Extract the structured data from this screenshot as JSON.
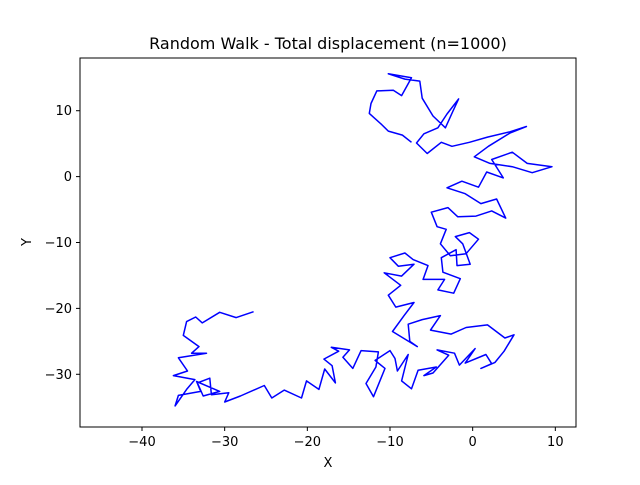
{
  "chart_data": {
    "type": "line",
    "title": "Random Walk - Total displacement (n=1000)",
    "xlabel": "X",
    "ylabel": "Y",
    "xlim": [
      -47.5,
      12.5
    ],
    "ylim": [
      -38,
      18
    ],
    "xticks": [
      -40,
      -30,
      -20,
      -10,
      0,
      10
    ],
    "xtick_labels": [
      "−40",
      "−30",
      "−20",
      "−10",
      "0",
      "10"
    ],
    "yticks": [
      -30,
      -20,
      -10,
      0,
      10
    ],
    "ytick_labels": [
      "−30",
      "−20",
      "−10",
      "0",
      "10"
    ],
    "grid": false,
    "legend": "none",
    "series": [
      {
        "color": "#0000ff",
        "points": [
          [
            -26.5,
            -20.5
          ],
          [
            -28.6,
            -21.4
          ],
          [
            -30.6,
            -20.6
          ],
          [
            -32.7,
            -22.2
          ],
          [
            -33.5,
            -21.3
          ],
          [
            -34.6,
            -22.0
          ],
          [
            -35.0,
            -24.1
          ],
          [
            -33.1,
            -25.8
          ],
          [
            -34.0,
            -26.8
          ],
          [
            -32.2,
            -26.8
          ],
          [
            -35.6,
            -27.5
          ],
          [
            -34.5,
            -29.5
          ],
          [
            -36.2,
            -30.2
          ],
          [
            -33.6,
            -30.8
          ],
          [
            -34.6,
            -32.3
          ],
          [
            -36.0,
            -34.8
          ],
          [
            -35.6,
            -33.2
          ],
          [
            -32.9,
            -32.6
          ],
          [
            -33.4,
            -31.1
          ],
          [
            -30.6,
            -32.6
          ],
          [
            -32.6,
            -33.3
          ],
          [
            -33.3,
            -31.3
          ],
          [
            -31.8,
            -30.6
          ],
          [
            -31.6,
            -33.1
          ],
          [
            -29.5,
            -32.8
          ],
          [
            -30.0,
            -34.2
          ],
          [
            -28.1,
            -33.3
          ],
          [
            -25.2,
            -31.7
          ],
          [
            -24.3,
            -33.6
          ],
          [
            -22.8,
            -32.4
          ],
          [
            -20.7,
            -33.6
          ],
          [
            -20.1,
            -31.0
          ],
          [
            -18.6,
            -32.3
          ],
          [
            -17.9,
            -29.2
          ],
          [
            -16.6,
            -31.3
          ],
          [
            -17.0,
            -28.7
          ],
          [
            -18.0,
            -27.7
          ],
          [
            -16.2,
            -26.5
          ],
          [
            -17.1,
            -25.9
          ],
          [
            -14.9,
            -26.3
          ],
          [
            -15.7,
            -27.4
          ],
          [
            -14.5,
            -29.1
          ],
          [
            -13.5,
            -26.4
          ],
          [
            -11.4,
            -26.6
          ],
          [
            -11.7,
            -28.9
          ],
          [
            -12.9,
            -31.4
          ],
          [
            -12.0,
            -33.4
          ],
          [
            -10.6,
            -29.1
          ],
          [
            -11.8,
            -27.9
          ],
          [
            -10.0,
            -26.4
          ],
          [
            -9.4,
            -27.6
          ],
          [
            -9.1,
            -29.5
          ],
          [
            -7.8,
            -27.0
          ],
          [
            -8.6,
            -31.0
          ],
          [
            -7.4,
            -32.2
          ],
          [
            -6.6,
            -29.4
          ],
          [
            -4.4,
            -28.9
          ],
          [
            -5.9,
            -30.2
          ],
          [
            -4.8,
            -29.8
          ],
          [
            -2.9,
            -27.1
          ],
          [
            -4.3,
            -26.3
          ],
          [
            -2.2,
            -26.8
          ],
          [
            -1.6,
            -28.6
          ],
          [
            0.3,
            -26.1
          ],
          [
            -0.9,
            -28.3
          ],
          [
            1.6,
            -27.0
          ],
          [
            2.3,
            -28.4
          ],
          [
            1.0,
            -29.1
          ],
          [
            2.7,
            -28.2
          ],
          [
            3.8,
            -26.5
          ],
          [
            5.0,
            -24.0
          ],
          [
            3.9,
            -24.5
          ],
          [
            1.8,
            -22.5
          ],
          [
            -0.8,
            -22.9
          ],
          [
            -2.6,
            -23.9
          ],
          [
            -5.1,
            -23.3
          ],
          [
            -3.9,
            -21.1
          ],
          [
            -6.1,
            -21.7
          ],
          [
            -7.8,
            -22.4
          ],
          [
            -7.6,
            -25.0
          ],
          [
            -6.7,
            -25.8
          ],
          [
            -9.7,
            -23.5
          ],
          [
            -8.3,
            -21.1
          ],
          [
            -7.1,
            -19.1
          ],
          [
            -9.3,
            -19.8
          ],
          [
            -10.2,
            -18.0
          ],
          [
            -8.7,
            -16.5
          ],
          [
            -10.7,
            -14.6
          ],
          [
            -8.6,
            -15.1
          ],
          [
            -7.1,
            -13.3
          ],
          [
            -9.0,
            -13.6
          ],
          [
            -10.0,
            -12.3
          ],
          [
            -8.2,
            -11.6
          ],
          [
            -7.2,
            -12.6
          ],
          [
            -5.4,
            -13.5
          ],
          [
            -6.0,
            -15.6
          ],
          [
            -3.4,
            -15.6
          ],
          [
            -4.2,
            -17.2
          ],
          [
            -2.3,
            -17.7
          ],
          [
            -1.5,
            -15.5
          ],
          [
            -3.6,
            -14.5
          ],
          [
            -3.8,
            -12.3
          ],
          [
            -2.0,
            -11.1
          ],
          [
            -1.9,
            -13.5
          ],
          [
            -0.3,
            -13.3
          ],
          [
            -1.2,
            -10.2
          ],
          [
            -2.1,
            -9.1
          ],
          [
            -0.4,
            -8.5
          ],
          [
            0.7,
            -9.5
          ],
          [
            -0.8,
            -11.7
          ],
          [
            -2.7,
            -12.0
          ],
          [
            -3.9,
            -10.2
          ],
          [
            -3.2,
            -8.0
          ],
          [
            -4.3,
            -7.6
          ],
          [
            -5.0,
            -5.4
          ],
          [
            -3.0,
            -4.7
          ],
          [
            -1.8,
            -6.1
          ],
          [
            0.4,
            -6.0
          ],
          [
            2.3,
            -5.2
          ],
          [
            4.0,
            -6.3
          ],
          [
            2.9,
            -3.4
          ],
          [
            1.0,
            -4.1
          ],
          [
            -0.9,
            -2.6
          ],
          [
            -3.1,
            -1.7
          ],
          [
            -1.3,
            -0.7
          ],
          [
            0.7,
            -1.6
          ],
          [
            1.7,
            0.7
          ],
          [
            3.7,
            -0.2
          ],
          [
            2.3,
            2.6
          ],
          [
            4.8,
            3.7
          ],
          [
            6.6,
            2.0
          ],
          [
            9.6,
            1.5
          ],
          [
            7.2,
            0.6
          ],
          [
            4.8,
            1.5
          ],
          [
            2.1,
            2.0
          ],
          [
            0.2,
            3.0
          ],
          [
            1.9,
            4.6
          ],
          [
            4.5,
            6.6
          ],
          [
            6.5,
            7.6
          ],
          [
            4.5,
            6.8
          ],
          [
            1.8,
            6.0
          ],
          [
            -0.4,
            5.2
          ],
          [
            -2.5,
            4.6
          ],
          [
            -3.8,
            5.2
          ],
          [
            -5.5,
            3.5
          ],
          [
            -6.8,
            5.1
          ],
          [
            -5.9,
            6.5
          ],
          [
            -4.2,
            7.4
          ],
          [
            -3.1,
            9.5
          ],
          [
            -1.7,
            11.8
          ],
          [
            -2.4,
            9.9
          ],
          [
            -3.3,
            7.4
          ],
          [
            -4.8,
            9.2
          ],
          [
            -6.1,
            11.9
          ],
          [
            -6.4,
            14.5
          ],
          [
            -8.2,
            14.8
          ],
          [
            -10.2,
            15.6
          ],
          [
            -7.4,
            15.0
          ],
          [
            -8.6,
            12.3
          ],
          [
            -9.6,
            13.1
          ],
          [
            -11.6,
            13.0
          ],
          [
            -12.3,
            11.1
          ],
          [
            -12.5,
            9.6
          ],
          [
            -11.0,
            7.9
          ],
          [
            -10.2,
            6.9
          ],
          [
            -8.5,
            6.3
          ],
          [
            -7.4,
            5.2
          ]
        ]
      }
    ]
  }
}
